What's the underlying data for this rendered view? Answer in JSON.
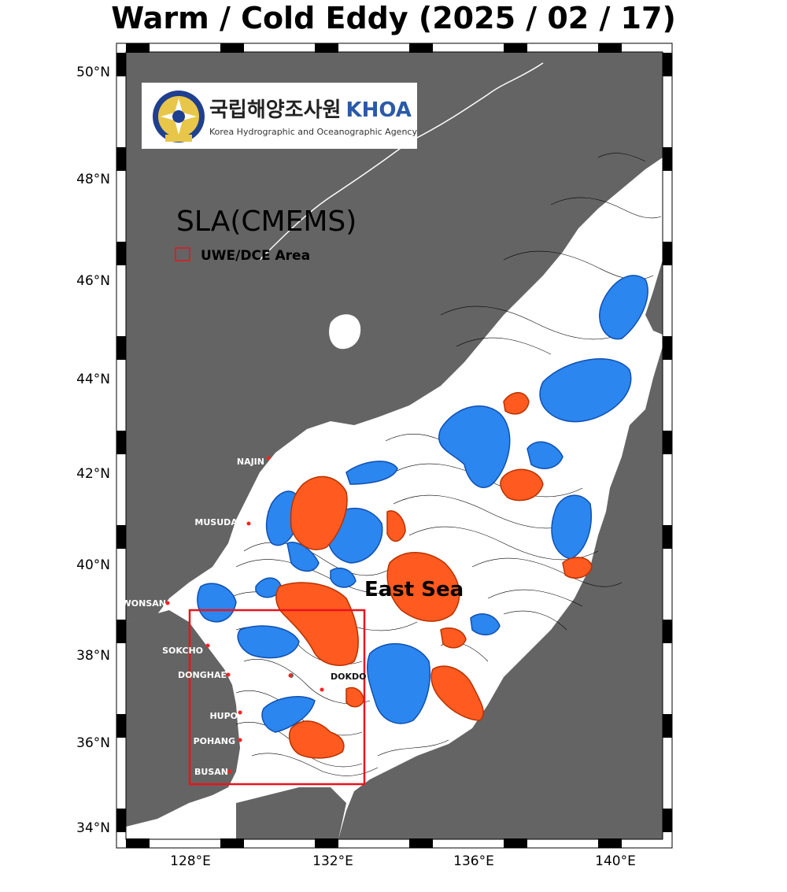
{
  "title": "Warm / Cold Eddy (2025 / 02 / 17)",
  "logo": {
    "korean": "국립해양조사원",
    "abbr": "KHOA",
    "english": "Korea Hydrographic and Oceanographic Agency"
  },
  "product_label": "SLA(CMEMS)",
  "legend": {
    "label": "UWE/DCE Area",
    "color": "#e8141c"
  },
  "sea_label": "East Sea",
  "lat_labels": [
    "50°N",
    "48°N",
    "46°N",
    "44°N",
    "42°N",
    "40°N",
    "38°N",
    "36°N",
    "34°N"
  ],
  "lon_labels": [
    "128°E",
    "132°E",
    "136°E",
    "140°E"
  ],
  "places": [
    "NAJIN",
    "MUSUDAN",
    "WONSAN",
    "SOKCHO",
    "DONGHAE",
    "HUPO",
    "POHANG",
    "BUSAN",
    "DOKDO"
  ],
  "colors": {
    "land": "#646464",
    "sea": "#ffffff",
    "warm_eddy": "#ff5a1f",
    "cold_eddy": "#2b86ef",
    "eddy_border_warm": "#b83200",
    "eddy_border_cold": "#1050b0",
    "contour": "#000000",
    "marker": "#ff2020"
  }
}
